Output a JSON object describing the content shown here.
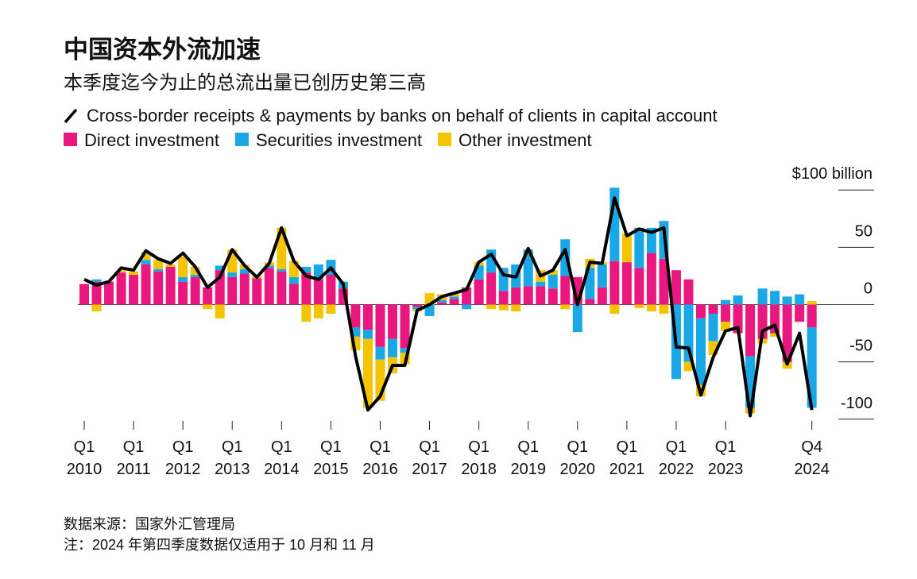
{
  "chart_data": {
    "type": "bar",
    "stacked": true,
    "title": "中国资本外流加速",
    "subtitle": "本季度迄今为止的总流出量已创历史第三高",
    "source": "数据来源：国家外汇管理局",
    "note": "注：2024 年第四季度数据仅适用于 10 月和 11 月",
    "categories": [
      "Q1 2010",
      null,
      null,
      null,
      "Q1 2011",
      null,
      null,
      null,
      "Q1 2012",
      null,
      null,
      null,
      "Q1 2013",
      null,
      null,
      null,
      "Q1 2014",
      null,
      null,
      null,
      "Q1 2015",
      null,
      null,
      null,
      "Q1 2016",
      null,
      null,
      null,
      "Q1 2017",
      null,
      null,
      null,
      "Q1 2018",
      null,
      null,
      null,
      "Q1 2019",
      null,
      null,
      null,
      "Q1 2020",
      null,
      null,
      null,
      "Q1 2021",
      null,
      null,
      null,
      "Q1 2022",
      null,
      null,
      null,
      "Q1 2023",
      null,
      null,
      null,
      null,
      null,
      null,
      "Q4 2024"
    ],
    "series": [
      {
        "name": "Cross-border receipts & payments by banks on behalf of clients in capital account",
        "type": "line",
        "color": "#000000",
        "values": [
          22,
          17,
          20,
          32,
          30,
          47,
          40,
          36,
          45,
          33,
          15,
          24,
          48,
          34,
          24,
          36,
          67,
          38,
          25,
          22,
          32,
          18,
          -45,
          -92,
          -80,
          -53,
          -53,
          -5,
          0,
          7,
          10,
          13,
          37,
          44,
          26,
          24,
          49,
          25,
          30,
          48,
          0,
          37,
          36,
          93,
          60,
          66,
          63,
          67,
          -37,
          -38,
          -79,
          -46,
          -23,
          -20,
          -97,
          -23,
          -18,
          -52,
          -25,
          -92
        ]
      },
      {
        "name": "Direct investment",
        "color": "#e8187f",
        "values": [
          18,
          20,
          20,
          28,
          26,
          35,
          29,
          33,
          20,
          24,
          15,
          30,
          24,
          27,
          23,
          32,
          29,
          18,
          28,
          22,
          26,
          14,
          -20,
          -22,
          -37,
          -30,
          -38,
          -2,
          0,
          2,
          5,
          15,
          22,
          28,
          12,
          15,
          16,
          16,
          14,
          25,
          24,
          5,
          15,
          38,
          37,
          32,
          45,
          40,
          30,
          22,
          -12,
          -8,
          -15,
          -25,
          -45,
          -30,
          -25,
          -50,
          -15,
          -20
        ]
      },
      {
        "name": "Securities investment",
        "color": "#1aa7e6",
        "values": [
          0,
          2,
          0,
          0,
          0,
          4,
          2,
          0,
          4,
          2,
          0,
          4,
          4,
          4,
          0,
          2,
          2,
          6,
          5,
          13,
          13,
          6,
          -8,
          -8,
          -11,
          -16,
          -4,
          -2,
          -10,
          2,
          2,
          -4,
          12,
          20,
          20,
          20,
          32,
          4,
          12,
          32,
          -24,
          27,
          20,
          64,
          0,
          35,
          22,
          33,
          -65,
          -50,
          -58,
          -24,
          4,
          8,
          -45,
          14,
          12,
          7,
          9,
          -70
        ]
      },
      {
        "name": "Other investment",
        "color": "#f5c400",
        "values": [
          0,
          -6,
          0,
          2,
          3,
          7,
          8,
          2,
          18,
          7,
          -4,
          -12,
          20,
          4,
          2,
          3,
          36,
          14,
          -15,
          -12,
          -8,
          0,
          -12,
          -60,
          -36,
          -14,
          -10,
          -2,
          10,
          5,
          3,
          0,
          3,
          -4,
          -5,
          -6,
          0,
          10,
          4,
          -4,
          0,
          8,
          2,
          -8,
          25,
          -3,
          -6,
          -8,
          0,
          -8,
          -10,
          -12,
          -8,
          0,
          -5,
          -4,
          -3,
          -6,
          0,
          3
        ]
      }
    ],
    "ylim": [
      -105,
      105
    ],
    "yticks": [
      {
        "value": 100,
        "label": "$100 billion"
      },
      50,
      0,
      -50,
      -100
    ]
  }
}
